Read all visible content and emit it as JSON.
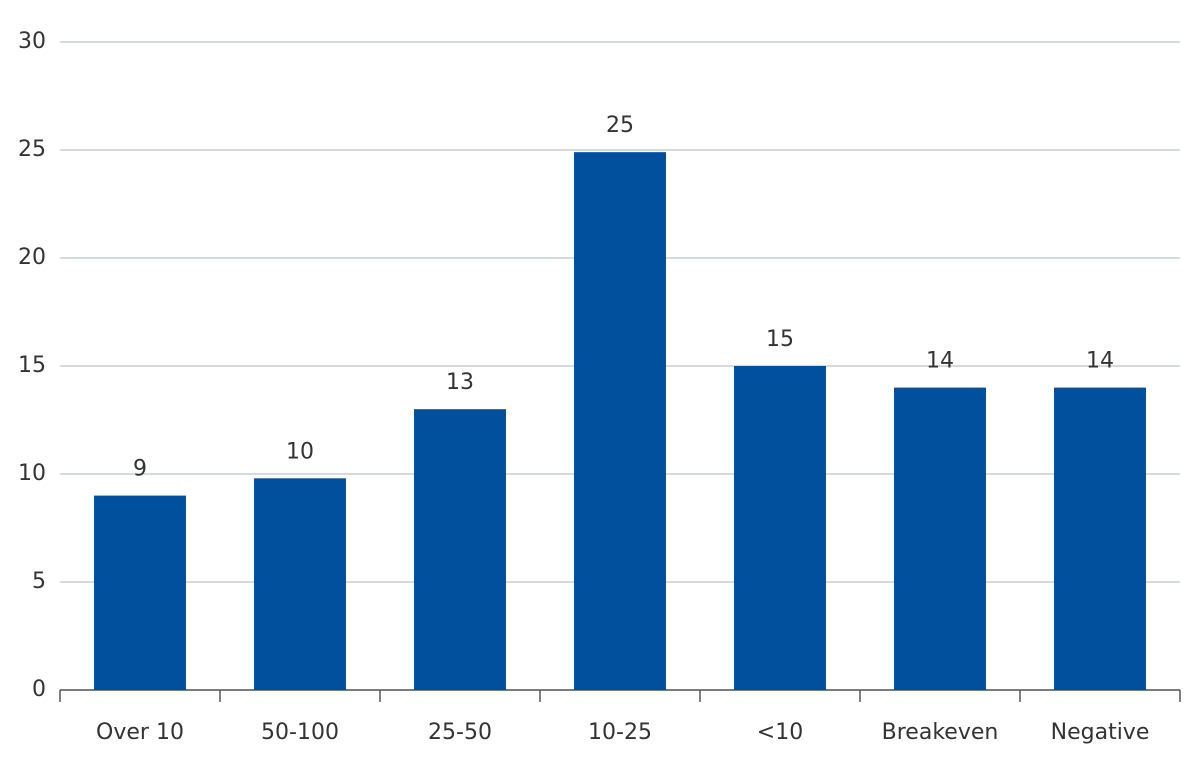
{
  "chart_data": {
    "type": "bar",
    "categories": [
      "Over 10",
      "50-100",
      "25-50",
      "10-25",
      "<10",
      "Breakeven",
      "Negative"
    ],
    "values": [
      9,
      9.8,
      13,
      24.9,
      15,
      14,
      14
    ],
    "value_labels": [
      "9",
      "10",
      "13",
      "25",
      "15",
      "14",
      "14"
    ],
    "color": "#00509e",
    "ylim": [
      0,
      30
    ],
    "yticks": [
      0,
      5,
      10,
      15,
      20,
      25,
      30
    ],
    "grid": true
  }
}
